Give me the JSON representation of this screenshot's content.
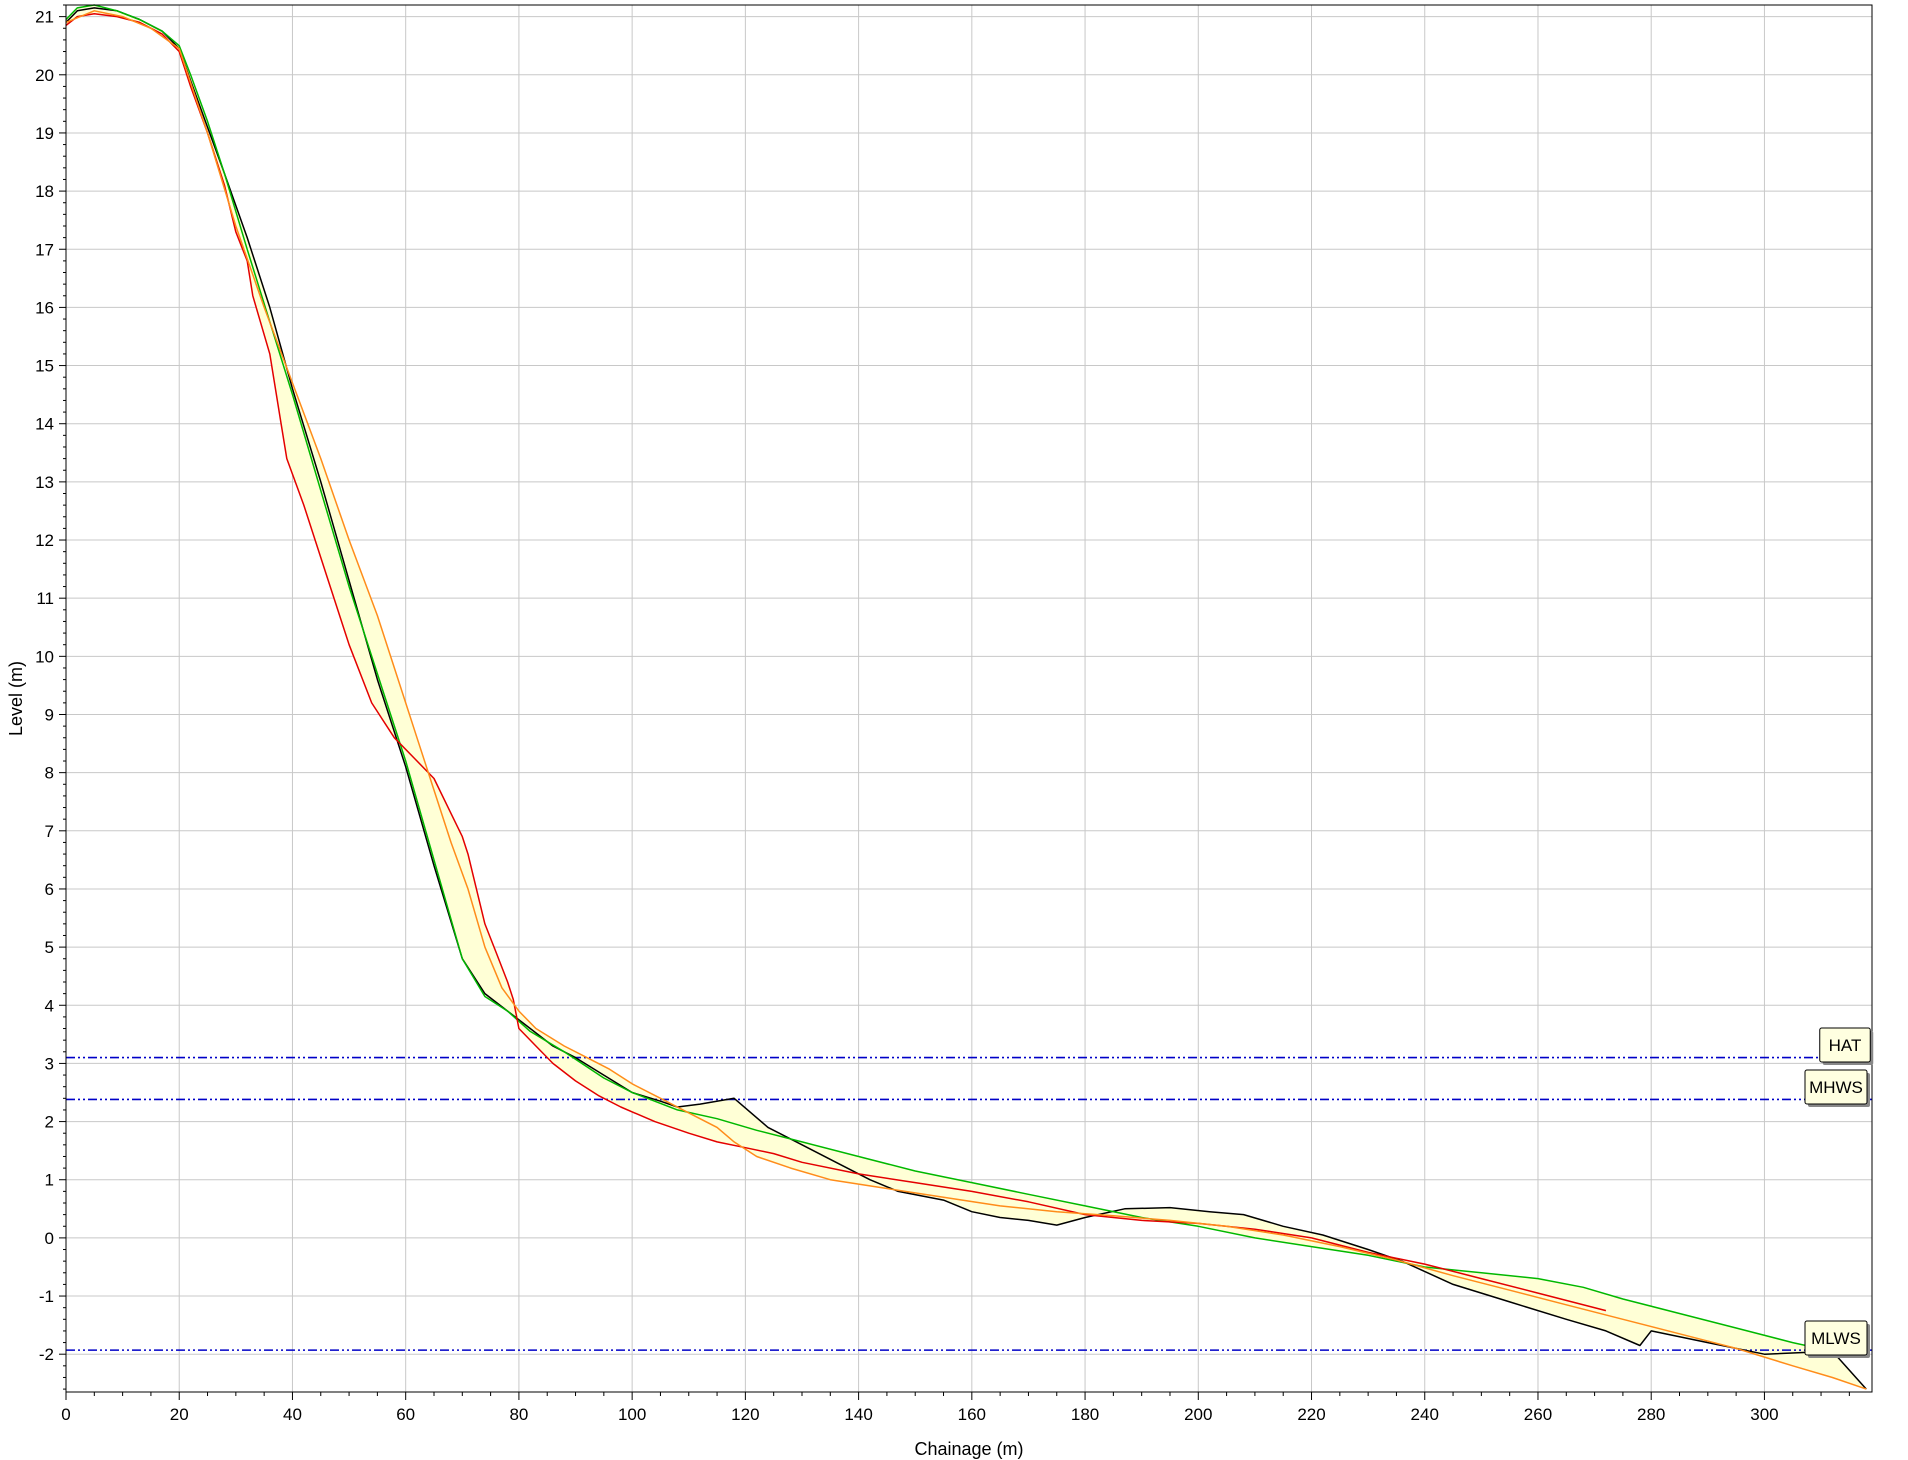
{
  "chart_data": {
    "type": "line",
    "xlabel": "Chainage (m)",
    "ylabel": "Level (m)",
    "xlim": [
      0,
      319
    ],
    "ylim": [
      -2.65,
      21.2
    ],
    "x_ticks": [
      0,
      20,
      40,
      60,
      80,
      100,
      120,
      140,
      160,
      180,
      200,
      220,
      240,
      260,
      280,
      300
    ],
    "y_ticks": [
      21,
      20,
      19,
      18,
      17,
      16,
      15,
      14,
      13,
      12,
      11,
      10,
      9,
      8,
      7,
      6,
      5,
      4,
      3,
      2,
      1,
      0,
      -1,
      -2
    ],
    "grid": true,
    "tide_levels": [
      {
        "label": "HAT",
        "value": 3.1
      },
      {
        "label": "MHWS",
        "value": 2.38
      },
      {
        "label": "MLWS",
        "value": -1.93
      }
    ],
    "series": [
      {
        "color": "#000000",
        "points": [
          [
            0,
            20.9
          ],
          [
            2,
            21.1
          ],
          [
            5,
            21.15
          ],
          [
            9,
            21.1
          ],
          [
            13,
            20.95
          ],
          [
            17,
            20.75
          ],
          [
            20,
            20.45
          ],
          [
            22,
            19.9
          ],
          [
            25,
            19.1
          ],
          [
            28,
            18.3
          ],
          [
            32,
            17.2
          ],
          [
            36,
            16.0
          ],
          [
            40,
            14.6
          ],
          [
            45,
            13.0
          ],
          [
            50,
            11.3
          ],
          [
            55,
            9.6
          ],
          [
            60,
            8.1
          ],
          [
            65,
            6.4
          ],
          [
            70,
            4.8
          ],
          [
            74,
            4.2
          ],
          [
            78,
            3.9
          ],
          [
            82,
            3.6
          ],
          [
            86,
            3.3
          ],
          [
            90,
            3.1
          ],
          [
            95,
            2.8
          ],
          [
            100,
            2.5
          ],
          [
            105,
            2.35
          ],
          [
            108,
            2.25
          ],
          [
            112,
            2.3
          ],
          [
            118,
            2.4
          ],
          [
            124,
            1.9
          ],
          [
            130,
            1.6
          ],
          [
            136,
            1.3
          ],
          [
            142,
            1.0
          ],
          [
            147,
            0.8
          ],
          [
            155,
            0.65
          ],
          [
            160,
            0.45
          ],
          [
            165,
            0.35
          ],
          [
            170,
            0.3
          ],
          [
            175,
            0.22
          ],
          [
            180,
            0.35
          ],
          [
            187,
            0.5
          ],
          [
            195,
            0.52
          ],
          [
            202,
            0.45
          ],
          [
            208,
            0.4
          ],
          [
            215,
            0.2
          ],
          [
            222,
            0.05
          ],
          [
            230,
            -0.2
          ],
          [
            236,
            -0.4
          ],
          [
            245,
            -0.8
          ],
          [
            255,
            -1.1
          ],
          [
            265,
            -1.4
          ],
          [
            272,
            -1.6
          ],
          [
            278,
            -1.85
          ],
          [
            280,
            -1.6
          ],
          [
            290,
            -1.8
          ],
          [
            300,
            -2.0
          ],
          [
            312,
            -1.95
          ],
          [
            318,
            -2.6
          ]
        ]
      },
      {
        "color": "#00b800",
        "points": [
          [
            0,
            20.95
          ],
          [
            2,
            21.15
          ],
          [
            5,
            21.2
          ],
          [
            9,
            21.1
          ],
          [
            13,
            20.95
          ],
          [
            17,
            20.75
          ],
          [
            20,
            20.5
          ],
          [
            22,
            20.0
          ],
          [
            25,
            19.2
          ],
          [
            28,
            18.3
          ],
          [
            32,
            17.0
          ],
          [
            40,
            14.5
          ],
          [
            50,
            11.2
          ],
          [
            60,
            8.2
          ],
          [
            65,
            6.5
          ],
          [
            70,
            4.8
          ],
          [
            74,
            4.15
          ],
          [
            78,
            3.9
          ],
          [
            82,
            3.55
          ],
          [
            88,
            3.2
          ],
          [
            95,
            2.75
          ],
          [
            100,
            2.5
          ],
          [
            108,
            2.2
          ],
          [
            115,
            2.05
          ],
          [
            122,
            1.85
          ],
          [
            130,
            1.65
          ],
          [
            140,
            1.4
          ],
          [
            150,
            1.15
          ],
          [
            160,
            0.95
          ],
          [
            170,
            0.75
          ],
          [
            180,
            0.55
          ],
          [
            190,
            0.35
          ],
          [
            200,
            0.2
          ],
          [
            210,
            0.0
          ],
          [
            220,
            -0.15
          ],
          [
            230,
            -0.3
          ],
          [
            240,
            -0.5
          ],
          [
            250,
            -0.6
          ],
          [
            260,
            -0.7
          ],
          [
            268,
            -0.85
          ],
          [
            275,
            -1.05
          ],
          [
            285,
            -1.3
          ],
          [
            295,
            -1.55
          ],
          [
            305,
            -1.8
          ],
          [
            312,
            -1.95
          ]
        ]
      },
      {
        "color": "#e40000",
        "points": [
          [
            0,
            20.85
          ],
          [
            2,
            21.0
          ],
          [
            5,
            21.05
          ],
          [
            9,
            21.0
          ],
          [
            13,
            20.9
          ],
          [
            17,
            20.7
          ],
          [
            20,
            20.4
          ],
          [
            22,
            19.8
          ],
          [
            25,
            19.0
          ],
          [
            28,
            18.1
          ],
          [
            30,
            17.3
          ],
          [
            32,
            16.8
          ],
          [
            33,
            16.2
          ],
          [
            36,
            15.2
          ],
          [
            38,
            14.0
          ],
          [
            39,
            13.4
          ],
          [
            42,
            12.6
          ],
          [
            46,
            11.4
          ],
          [
            50,
            10.2
          ],
          [
            54,
            9.2
          ],
          [
            58,
            8.6
          ],
          [
            62,
            8.2
          ],
          [
            65,
            7.9
          ],
          [
            68,
            7.3
          ],
          [
            70,
            6.9
          ],
          [
            71,
            6.6
          ],
          [
            72,
            6.2
          ],
          [
            74,
            5.4
          ],
          [
            76,
            4.9
          ],
          [
            78,
            4.4
          ],
          [
            79,
            4.1
          ],
          [
            80,
            3.6
          ],
          [
            83,
            3.3
          ],
          [
            86,
            3.0
          ],
          [
            90,
            2.7
          ],
          [
            94,
            2.45
          ],
          [
            98,
            2.25
          ],
          [
            104,
            2.0
          ],
          [
            110,
            1.8
          ],
          [
            115,
            1.65
          ],
          [
            120,
            1.55
          ],
          [
            125,
            1.45
          ],
          [
            130,
            1.3
          ],
          [
            140,
            1.1
          ],
          [
            150,
            0.95
          ],
          [
            160,
            0.8
          ],
          [
            170,
            0.62
          ],
          [
            180,
            0.4
          ],
          [
            190,
            0.3
          ],
          [
            200,
            0.25
          ],
          [
            210,
            0.15
          ],
          [
            220,
            0.0
          ],
          [
            230,
            -0.25
          ],
          [
            240,
            -0.45
          ],
          [
            250,
            -0.7
          ],
          [
            260,
            -0.95
          ],
          [
            272,
            -1.25
          ]
        ]
      },
      {
        "color": "#ff8c1a",
        "points": [
          [
            0,
            20.9
          ],
          [
            5,
            21.1
          ],
          [
            10,
            21.0
          ],
          [
            15,
            20.8
          ],
          [
            20,
            20.45
          ],
          [
            25,
            19.0
          ],
          [
            30,
            17.4
          ],
          [
            35,
            16.0
          ],
          [
            40,
            14.7
          ],
          [
            45,
            13.4
          ],
          [
            50,
            12.0
          ],
          [
            55,
            10.7
          ],
          [
            60,
            9.2
          ],
          [
            62,
            8.6
          ],
          [
            65,
            7.7
          ],
          [
            68,
            6.8
          ],
          [
            71,
            6.0
          ],
          [
            74,
            5.0
          ],
          [
            77,
            4.3
          ],
          [
            80,
            3.9
          ],
          [
            83,
            3.6
          ],
          [
            88,
            3.3
          ],
          [
            92,
            3.1
          ],
          [
            96,
            2.9
          ],
          [
            100,
            2.65
          ],
          [
            105,
            2.4
          ],
          [
            110,
            2.15
          ],
          [
            115,
            1.9
          ],
          [
            118,
            1.65
          ],
          [
            122,
            1.4
          ],
          [
            128,
            1.2
          ],
          [
            135,
            1.0
          ],
          [
            145,
            0.85
          ],
          [
            155,
            0.7
          ],
          [
            165,
            0.55
          ],
          [
            175,
            0.45
          ],
          [
            185,
            0.38
          ],
          [
            195,
            0.3
          ],
          [
            205,
            0.2
          ],
          [
            215,
            0.05
          ],
          [
            225,
            -0.15
          ],
          [
            235,
            -0.38
          ],
          [
            245,
            -0.65
          ],
          [
            255,
            -0.9
          ],
          [
            265,
            -1.15
          ],
          [
            275,
            -1.4
          ],
          [
            285,
            -1.65
          ],
          [
            295,
            -1.9
          ],
          [
            305,
            -2.2
          ],
          [
            312,
            -2.4
          ],
          [
            318,
            -2.6
          ]
        ]
      }
    ]
  },
  "colors": {
    "grid": "#c8c8c8",
    "fill": "#ffffd6",
    "tide_line": "#0000c8",
    "label_bg": "#ffffe0"
  }
}
